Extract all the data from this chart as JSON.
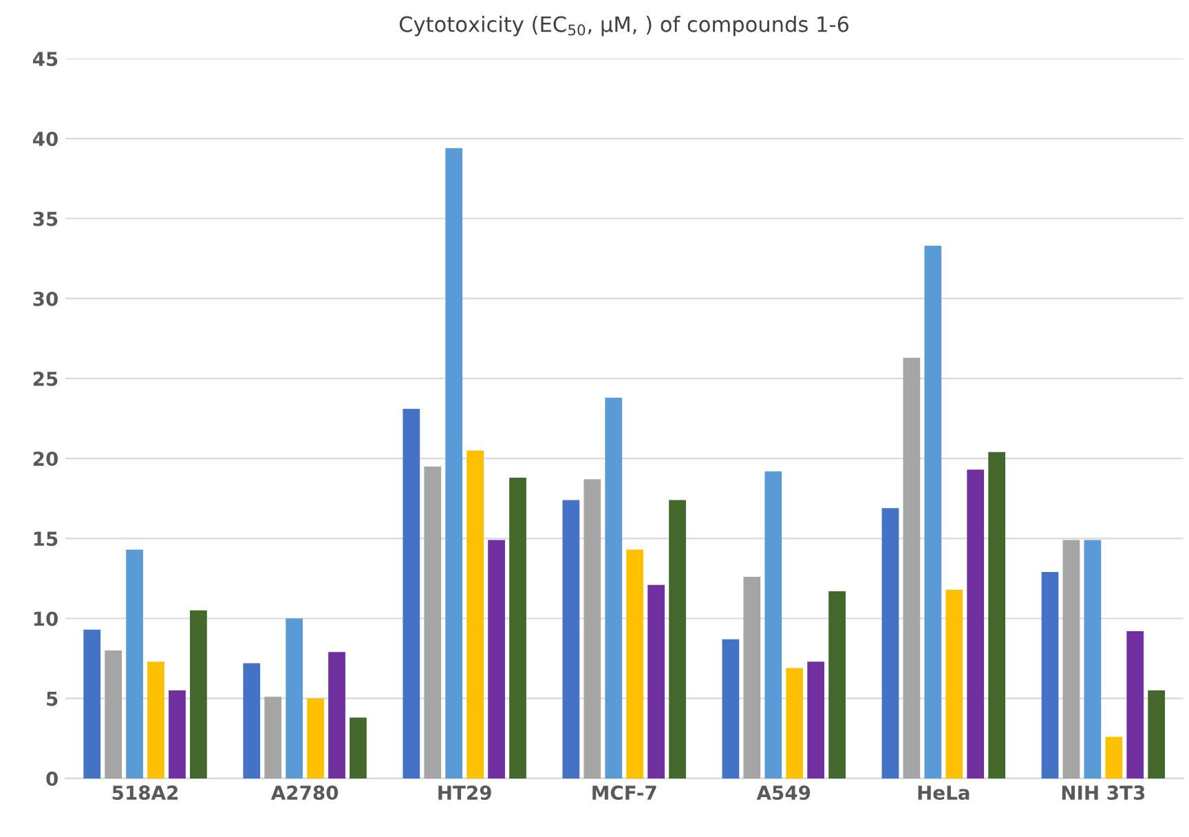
{
  "chart_data": {
    "type": "bar",
    "title": "Cytotoxicity (EC$_{50}$, µM, ) of compounds 1-6",
    "categories": [
      "518A2",
      "A2780",
      "HT29",
      "MCF-7",
      "A549",
      "HeLa",
      "NIH 3T3"
    ],
    "series": [
      {
        "color": "#4472c4",
        "values": [
          9.3,
          7.2,
          23.1,
          17.4,
          8.7,
          16.9,
          12.9
        ]
      },
      {
        "color": "#a5a5a5",
        "values": [
          8.0,
          5.1,
          19.5,
          18.7,
          12.6,
          26.3,
          14.9
        ]
      },
      {
        "color": "#5b9bd5",
        "values": [
          14.3,
          10.0,
          39.4,
          23.8,
          19.2,
          33.3,
          14.9
        ]
      },
      {
        "color": "#ffc000",
        "values": [
          7.3,
          5.0,
          20.5,
          14.3,
          6.9,
          11.8,
          2.6
        ]
      },
      {
        "color": "#7030a0",
        "values": [
          5.5,
          7.9,
          14.9,
          12.1,
          7.3,
          19.3,
          9.2
        ]
      },
      {
        "color": "#43682b",
        "values": [
          10.5,
          3.8,
          18.8,
          17.4,
          11.7,
          20.4,
          5.5
        ]
      }
    ],
    "ylim": [
      0,
      45
    ],
    "yticks": [
      0,
      5,
      10,
      15,
      20,
      25,
      30,
      35,
      40,
      45
    ],
    "grid": "y"
  }
}
